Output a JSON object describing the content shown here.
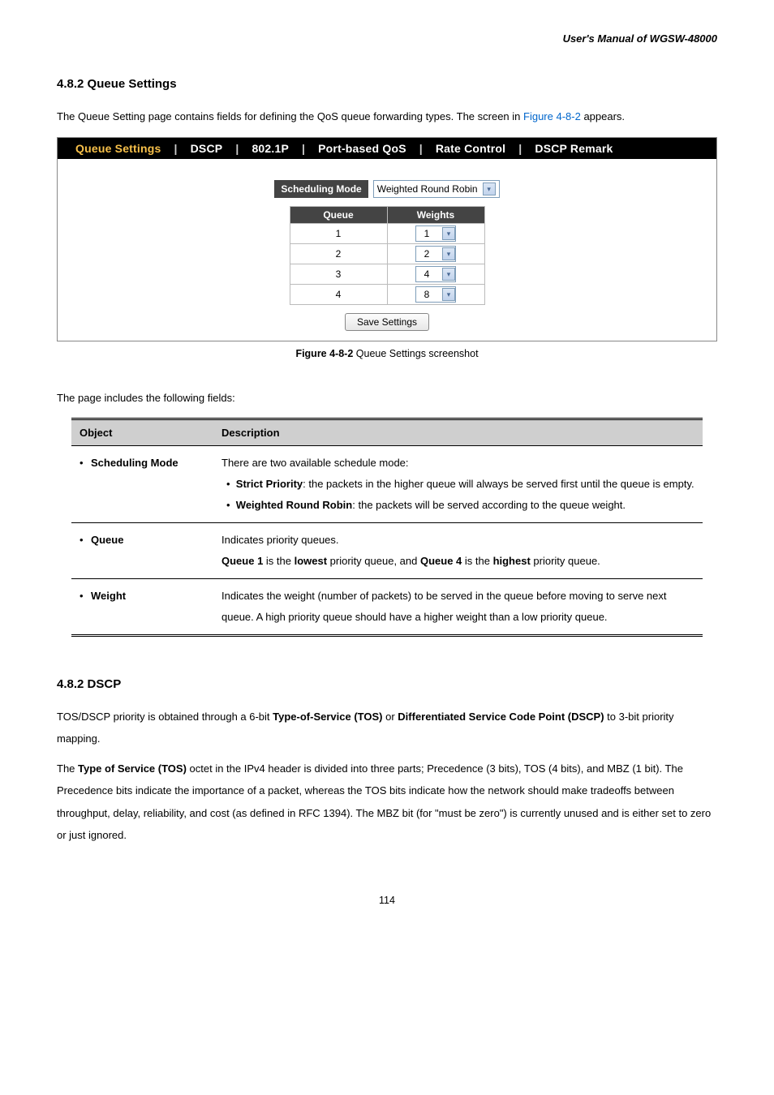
{
  "header": {
    "manual_title": "User's Manual of WGSW-48000"
  },
  "section1": {
    "heading": "4.8.2 Queue Settings",
    "intro_pre": "The Queue Setting page contains fields for defining the QoS queue forwarding types. The screen in ",
    "intro_link": "Figure 4-8-2",
    "intro_post": " appears."
  },
  "ui": {
    "tabs": [
      "Queue Settings",
      "DSCP",
      "802.1P",
      "Port-based QoS",
      "Rate Control",
      "DSCP Remark"
    ],
    "active_tab_index": 0,
    "sched_label": "Scheduling Mode",
    "sched_value": "Weighted Round Robin",
    "queue_header": "Queue",
    "weights_header": "Weights",
    "rows": [
      {
        "queue": "1",
        "weight": "1"
      },
      {
        "queue": "2",
        "weight": "2"
      },
      {
        "queue": "3",
        "weight": "4"
      },
      {
        "queue": "4",
        "weight": "8"
      }
    ],
    "save_label": "Save Settings"
  },
  "figure": {
    "caption_bold": "Figure 4-8-2",
    "caption_rest": " Queue Settings screenshot"
  },
  "fields_intro": "The page includes the following fields:",
  "fields_table": {
    "col_object": "Object",
    "col_desc": "Description",
    "rows": [
      {
        "object": "Scheduling Mode",
        "desc_lines": [
          {
            "text": "There are two available schedule mode:"
          },
          {
            "bullet": true,
            "bold": "Strict Priority",
            "text": ": the packets in the higher queue will always be served first until the queue is empty.",
            "indent_cont": true
          },
          {
            "bullet": true,
            "bold": "Weighted Round Robin",
            "text": ": the packets will be served according to the queue weight."
          }
        ]
      },
      {
        "object": "Queue",
        "desc_lines": [
          {
            "text": "Indicates priority queues."
          },
          {
            "rich": "<b>Queue 1</b> is the <b>lowest</b> priority queue, and <b>Queue 4</b> is the <b>highest</b> priority queue."
          }
        ]
      },
      {
        "object": "Weight",
        "desc_lines": [
          {
            "text": "Indicates the weight (number of packets) to be served in the queue before moving to serve next queue. A high priority queue should have a higher weight than a low priority queue."
          }
        ]
      }
    ]
  },
  "section2": {
    "heading": "4.8.2 DSCP",
    "p1_pre": "TOS/DSCP priority is obtained through a 6-bit ",
    "p1_b1": "Type-of-Service (TOS)",
    "p1_mid": " or ",
    "p1_b2": "Differentiated Service Code Point (DSCP)",
    "p1_post": " to 3-bit priority mapping.",
    "p2_pre": "The ",
    "p2_b1": "Type of Service (TOS)",
    "p2_post": " octet in the IPv4 header is divided into three parts; Precedence (3 bits), TOS (4 bits), and MBZ (1 bit). The Precedence bits indicate the importance of a packet, whereas the TOS bits indicate how the network should make tradeoffs between throughput, delay, reliability, and cost (as defined in RFC 1394). The MBZ bit (for \"must be zero\") is currently unused and is either set to zero or just ignored."
  },
  "page_number": "114"
}
